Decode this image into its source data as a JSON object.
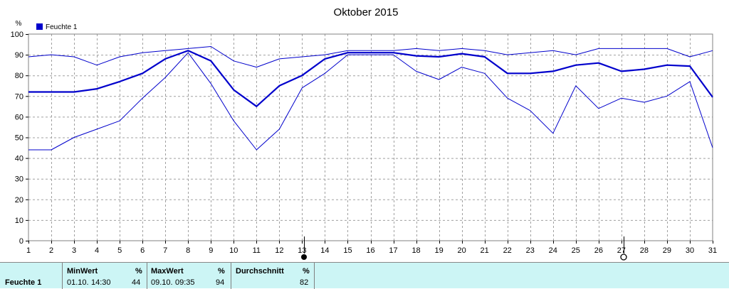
{
  "chart_data": {
    "type": "line",
    "title": "Oktober 2015",
    "ylabel": "%",
    "ylim": [
      0,
      100
    ],
    "yticks": [
      0,
      10,
      20,
      30,
      40,
      50,
      60,
      70,
      80,
      90,
      100
    ],
    "x": [
      1,
      2,
      3,
      4,
      5,
      6,
      7,
      8,
      9,
      10,
      11,
      12,
      13,
      14,
      15,
      16,
      17,
      18,
      19,
      20,
      21,
      22,
      23,
      24,
      25,
      26,
      27,
      28,
      29,
      30,
      31
    ],
    "legend": {
      "label": "Feuchte 1",
      "color": "#0000cc",
      "placement": "top-left"
    },
    "grid": true,
    "series": [
      {
        "name": "Feuchte 1",
        "role": "average",
        "color": "#0000cc",
        "values": [
          72,
          72,
          72,
          73.5,
          77,
          81,
          88,
          92,
          87,
          73,
          65,
          75,
          80,
          88,
          91,
          91,
          91,
          89.5,
          89,
          90.5,
          89,
          81,
          81,
          82,
          85,
          86,
          82,
          83,
          85,
          84.5,
          69.5
        ]
      },
      {
        "role": "max",
        "color": "#0000cc",
        "values": [
          89,
          90,
          89,
          85,
          89,
          91,
          92,
          93,
          94,
          87,
          84,
          88,
          89,
          90,
          92,
          92,
          92,
          93,
          92,
          93,
          92,
          90,
          91,
          92,
          90,
          93,
          93,
          93,
          93,
          89,
          92
        ]
      },
      {
        "role": "min",
        "color": "#0000cc",
        "values": [
          44,
          44,
          50,
          54,
          58,
          69,
          79,
          91,
          76,
          58,
          44,
          54,
          74,
          81,
          90,
          90,
          90,
          82,
          78,
          84,
          81,
          69,
          63,
          52,
          75,
          64,
          69,
          67,
          70,
          77,
          45
        ]
      }
    ],
    "moon_phases": [
      {
        "day": 13,
        "phase": "new-moon",
        "symbol": "●"
      },
      {
        "day": 27,
        "phase": "full-moon",
        "symbol": "○"
      }
    ]
  },
  "stats_table": {
    "row_label": "Feuchte 1",
    "min": {
      "header": "MinWert",
      "unit": "%",
      "date": "01.10.",
      "time": "14:30",
      "value": "44"
    },
    "max": {
      "header": "MaxWert",
      "unit": "%",
      "date": "09.10.",
      "time": "09:35",
      "value": "94"
    },
    "avg": {
      "header": "Durchschnitt",
      "unit": "%",
      "value": "82"
    }
  }
}
